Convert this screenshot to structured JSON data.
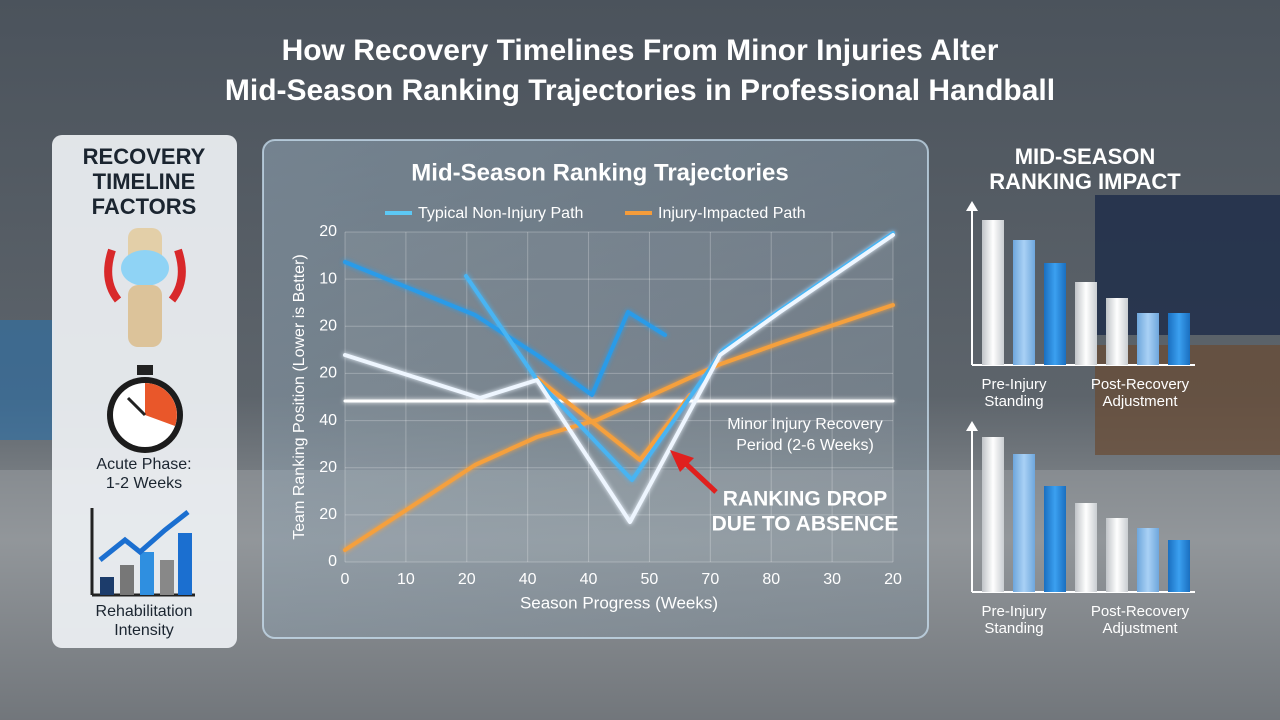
{
  "header": {
    "title": [
      "How Recovery Timelines From Minor Injuries Alter",
      "Mid-Season Ranking Trajectories in Professional Handball"
    ]
  },
  "left_panel": {
    "title": [
      "RECOVERY",
      "TIMELINE",
      "FACTORS"
    ],
    "items": [
      {
        "label": [
          "Acute Phase:",
          "1-2 Weeks"
        ]
      },
      {
        "label": [
          "Rehabilitation",
          "Intensity"
        ]
      }
    ]
  },
  "main_chart": {
    "title": "Mid-Season Ranking Trajectories",
    "legend": [
      "Typical Non-Injury Path",
      "Injury-Impacted Path"
    ],
    "y_axis_title": "Team Ranking Position (Lower is Better)",
    "x_axis_title": "Season Progress (Weeks)",
    "y_axis_labels": [
      20,
      10,
      20,
      20,
      40,
      20,
      20,
      0
    ],
    "x_axis_labels": [
      0,
      10,
      20,
      40,
      40,
      50,
      70,
      80,
      30,
      20
    ],
    "annotations": [
      {
        "text": [
          "Minor Injury Recovery",
          "Period (2-6 Weeks)"
        ]
      },
      {
        "text": [
          "RANKING DROP",
          "DUE TO ABSENCE"
        ]
      }
    ]
  },
  "right_panel": {
    "title": [
      "MID-SEASON",
      "RANKING IMPACT"
    ],
    "charts": [
      {
        "left_label": [
          "Pre-Injury",
          "Standing"
        ],
        "right_label": [
          "Post-Recovery",
          "Adjustment"
        ]
      },
      {
        "left_label": [
          "Pre-Injury",
          "Standing"
        ],
        "right_label": [
          "Post-Recovery",
          "Adjustment"
        ]
      }
    ]
  }
}
